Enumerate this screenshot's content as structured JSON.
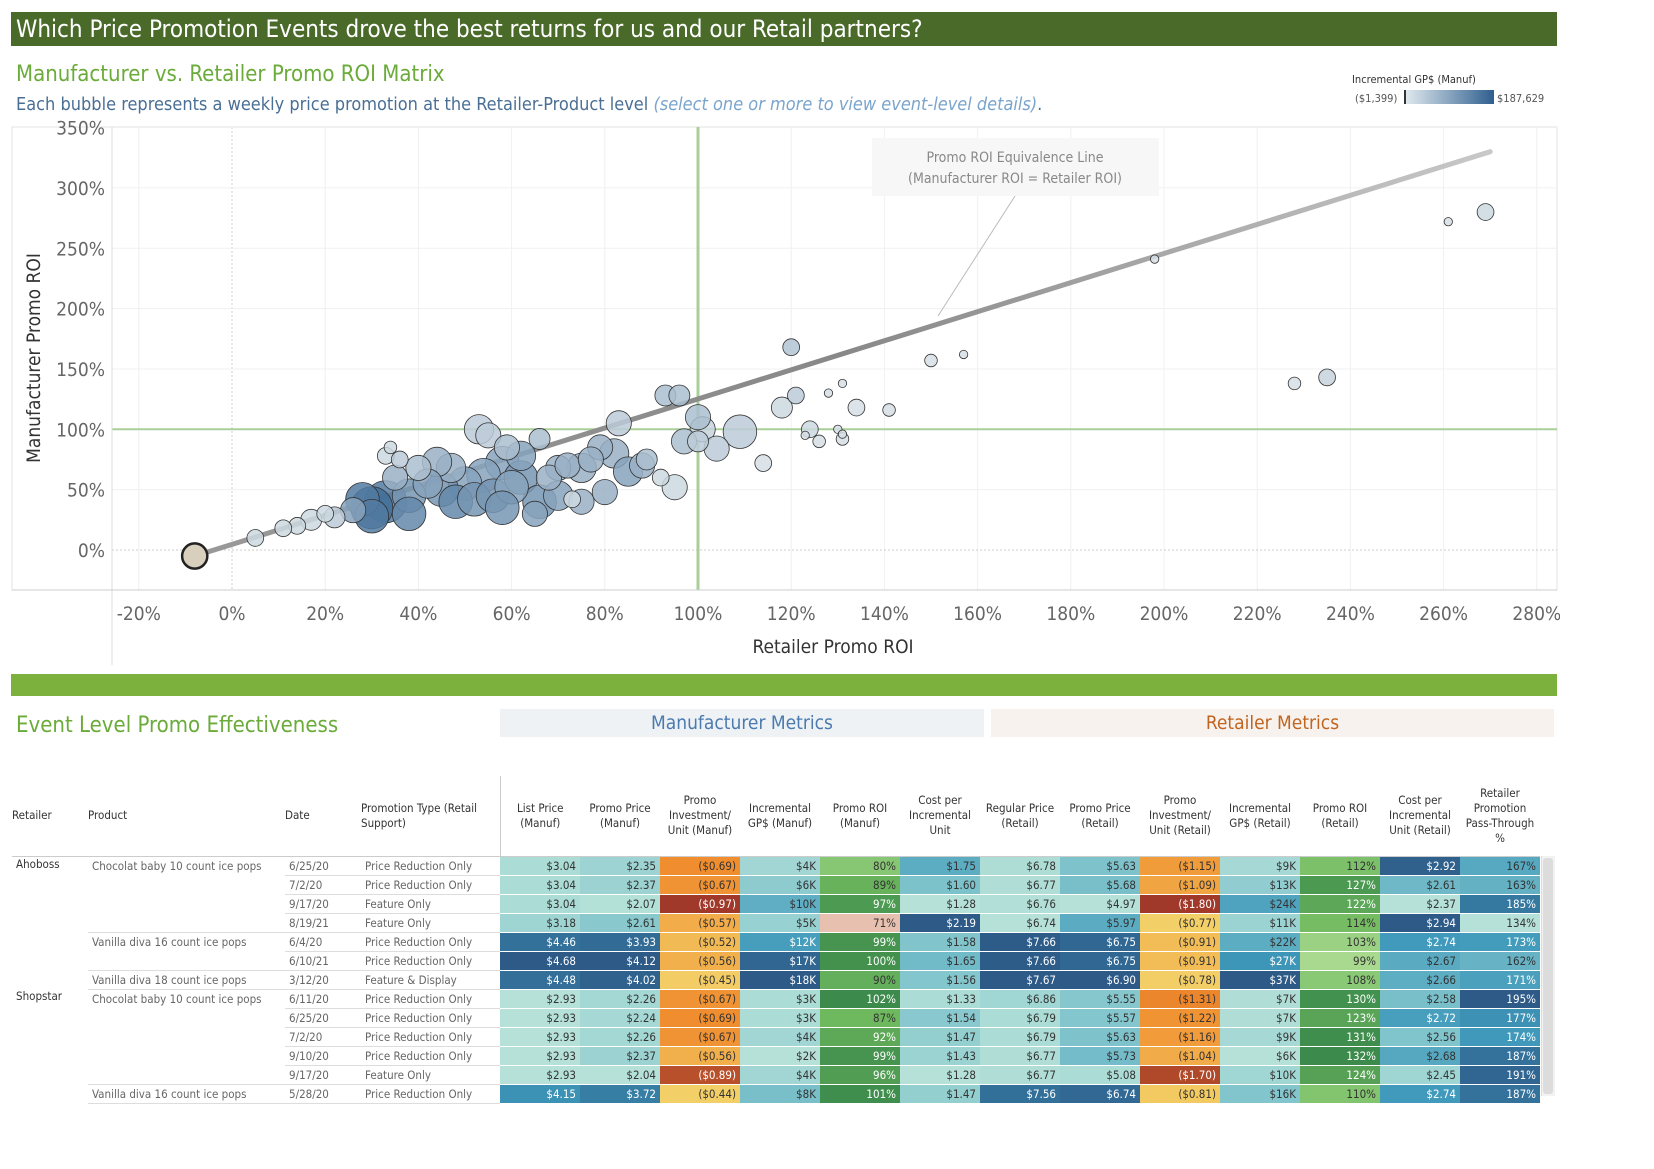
{
  "header": {
    "title": "Which Price Promotion Events drove the best returns for us and our Retail partners?"
  },
  "matrix": {
    "title": "Manufacturer vs. Retailer Promo ROI Matrix",
    "subtitle": "Each bubble represents a weekly price promotion at the Retailer-Product level",
    "subtitle_hint": "(select one or more to view event-level details)",
    "subtitle_end": "."
  },
  "legend": {
    "title": "Incremental GP$ (Manuf)",
    "min": "($1,399)",
    "max": "$187,629",
    "color_low": "#dfe8ee",
    "color_high": "#2f5f8f"
  },
  "chart_data": {
    "type": "scatter",
    "xlabel": "Retailer Promo ROI",
    "ylabel": "Manufacturer Promo ROI",
    "xlim": [
      -25,
      283
    ],
    "ylim": [
      -35,
      362
    ],
    "xticks": [
      "-20%",
      "0%",
      "20%",
      "40%",
      "60%",
      "80%",
      "100%",
      "120%",
      "140%",
      "160%",
      "180%",
      "200%",
      "220%",
      "240%",
      "260%",
      "280%"
    ],
    "xtick_values": [
      -20,
      0,
      20,
      40,
      60,
      80,
      100,
      120,
      140,
      160,
      180,
      200,
      220,
      240,
      260,
      280
    ],
    "yticks": [
      "0%",
      "50%",
      "100%",
      "150%",
      "200%",
      "250%",
      "300%",
      "350%"
    ],
    "ytick_values": [
      0,
      50,
      100,
      150,
      200,
      250,
      300,
      350
    ],
    "grid": true,
    "reference_lines": {
      "x": 100,
      "y": 100,
      "color": "#a9cf98"
    },
    "equivalence_line": {
      "label": "Promo ROI Equivalence Line",
      "label2": "(Manufacturer ROI = Retailer ROI)",
      "from": [
        -8,
        -5
      ],
      "to": [
        270,
        330
      ]
    },
    "point_fields": [
      "retailer_roi",
      "manuf_roi",
      "size",
      "gp_shade"
    ],
    "points": [
      [
        269,
        280,
        2,
        0.1
      ],
      [
        261,
        272,
        1,
        0.05
      ],
      [
        235,
        143,
        2,
        0.15
      ],
      [
        228,
        138,
        1.5,
        0.05
      ],
      [
        198,
        241,
        1,
        0.05
      ],
      [
        157,
        162,
        1,
        0.05
      ],
      [
        150,
        157,
        1.5,
        0.05
      ],
      [
        141,
        116,
        1.5,
        0.05
      ],
      [
        134,
        118,
        2,
        0.05
      ],
      [
        131,
        138,
        1,
        0.05
      ],
      [
        128,
        130,
        1,
        0.05
      ],
      [
        120,
        168,
        2,
        0.25
      ],
      [
        121,
        128,
        2,
        0.2
      ],
      [
        118,
        118,
        2.5,
        0.1
      ],
      [
        124,
        100,
        2,
        0.1
      ],
      [
        123,
        95,
        1,
        0.05
      ],
      [
        130,
        100,
        1,
        0.05
      ],
      [
        126,
        90,
        1.5,
        0.05
      ],
      [
        131,
        96,
        1,
        0.05
      ],
      [
        131,
        92,
        1.5,
        0.05
      ],
      [
        114,
        72,
        2,
        0.05
      ],
      [
        109,
        98,
        4,
        0.2
      ],
      [
        101,
        100,
        3,
        0.15
      ],
      [
        93,
        128,
        2.5,
        0.3
      ],
      [
        96,
        128,
        2.5,
        0.3
      ],
      [
        100,
        110,
        3,
        0.3
      ],
      [
        97,
        90,
        3,
        0.3
      ],
      [
        95,
        52,
        3,
        0.1
      ],
      [
        92,
        60,
        2,
        0.1
      ],
      [
        89,
        75,
        2.5,
        0.3
      ],
      [
        83,
        105,
        3,
        0.2
      ],
      [
        82,
        80,
        3.5,
        0.4
      ],
      [
        79,
        85,
        3,
        0.4
      ],
      [
        75,
        68,
        3.5,
        0.4
      ],
      [
        70,
        68,
        3,
        0.4
      ],
      [
        66,
        92,
        2.5,
        0.3
      ],
      [
        62,
        78,
        3.5,
        0.5
      ],
      [
        58,
        72,
        4,
        0.5
      ],
      [
        54,
        62,
        4,
        0.5
      ],
      [
        50,
        55,
        4,
        0.5
      ],
      [
        47,
        68,
        3.5,
        0.4
      ],
      [
        44,
        73,
        3.5,
        0.4
      ],
      [
        40,
        68,
        3,
        0.3
      ],
      [
        38,
        45,
        4,
        0.6
      ],
      [
        35,
        60,
        3,
        0.4
      ],
      [
        33,
        40,
        5,
        0.8
      ],
      [
        30,
        35,
        5,
        0.9
      ],
      [
        28,
        42,
        4,
        0.8
      ],
      [
        26,
        33,
        3,
        0.5
      ],
      [
        22,
        27,
        2.5,
        0.2
      ],
      [
        20,
        30,
        2,
        0.1
      ],
      [
        17,
        25,
        2.5,
        0.1
      ],
      [
        14,
        20,
        2,
        0.1
      ],
      [
        11,
        18,
        2,
        0.1
      ],
      [
        5,
        10,
        2,
        0.1
      ],
      [
        33,
        78,
        2,
        0.1
      ],
      [
        34,
        85,
        1.5,
        0.1
      ],
      [
        36,
        75,
        2,
        0.2
      ],
      [
        53,
        100,
        3.5,
        0.2
      ],
      [
        55,
        95,
        3,
        0.2
      ],
      [
        59,
        85,
        3,
        0.3
      ],
      [
        62,
        60,
        4,
        0.6
      ],
      [
        66,
        40,
        4,
        0.6
      ],
      [
        70,
        45,
        3.5,
        0.5
      ],
      [
        75,
        40,
        3,
        0.4
      ],
      [
        80,
        48,
        3,
        0.4
      ],
      [
        85,
        65,
        3.5,
        0.5
      ],
      [
        88,
        70,
        3,
        0.4
      ],
      [
        45,
        50,
        4,
        0.6
      ],
      [
        48,
        40,
        4,
        0.7
      ],
      [
        52,
        42,
        4,
        0.6
      ],
      [
        56,
        45,
        4,
        0.6
      ],
      [
        60,
        52,
        4,
        0.5
      ],
      [
        42,
        55,
        3.5,
        0.5
      ],
      [
        38,
        30,
        4,
        0.7
      ],
      [
        30,
        28,
        4,
        0.8
      ],
      [
        68,
        60,
        3,
        0.4
      ],
      [
        72,
        70,
        3,
        0.4
      ],
      [
        77,
        75,
        3,
        0.4
      ],
      [
        104,
        84,
        3,
        0.2
      ],
      [
        100,
        90,
        2.5,
        0.2
      ],
      [
        73,
        42,
        2,
        0.1
      ],
      [
        65,
        30,
        3,
        0.5
      ],
      [
        58,
        35,
        4,
        0.6
      ],
      [
        -8,
        -5,
        3,
        -1
      ]
    ]
  },
  "table": {
    "title": "Event Level Promo Effectiveness",
    "group_manuf": "Manufacturer Metrics",
    "group_retail": "Retailer Metrics",
    "headers": [
      "Retailer",
      "Product",
      "Date",
      "Promotion Type (Retail Support)",
      "List Price (Manuf)",
      "Promo Price (Manuf)",
      "Promo Investment/ Unit (Manuf)",
      "Incremental GP$ (Manuf)",
      "Promo ROI (Manuf)",
      "Cost per Incremental Unit",
      "Regular Price (Retail)",
      "Promo Price (Retail)",
      "Promo Investment/ Unit (Retail)",
      "Incremental GP$ (Retail)",
      "Promo ROI (Retail)",
      "Cost per Incremental Unit (Retail)",
      "Retailer Promotion Pass-Through %"
    ],
    "column_scales": [
      "blue",
      "blue",
      "orange",
      "blue",
      "green",
      "blue",
      "blue",
      "blue",
      "orange",
      "blue",
      "green",
      "blue",
      "blue"
    ],
    "rows": [
      [
        "Ahoboss",
        "Chocolat baby 10 count ice pops",
        "6/25/20",
        "Price Reduction Only",
        "$3.04",
        "$2.35",
        "($0.69)",
        "$4K",
        "80%",
        "$1.75",
        "$6.78",
        "$5.63",
        "($1.15)",
        "$9K",
        "112%",
        "$2.92",
        "167%"
      ],
      [
        "",
        "",
        "7/2/20",
        "Price Reduction Only",
        "$3.04",
        "$2.37",
        "($0.67)",
        "$6K",
        "89%",
        "$1.60",
        "$6.77",
        "$5.68",
        "($1.09)",
        "$13K",
        "127%",
        "$2.61",
        "163%"
      ],
      [
        "",
        "",
        "9/17/20",
        "Feature Only",
        "$3.04",
        "$2.07",
        "($0.97)",
        "$10K",
        "97%",
        "$1.28",
        "$6.76",
        "$4.97",
        "($1.80)",
        "$24K",
        "122%",
        "$2.37",
        "185%"
      ],
      [
        "",
        "",
        "8/19/21",
        "Feature Only",
        "$3.18",
        "$2.61",
        "($0.57)",
        "$5K",
        "71%",
        "$2.19",
        "$6.74",
        "$5.97",
        "($0.77)",
        "$11K",
        "114%",
        "$2.94",
        "134%"
      ],
      [
        "",
        "Vanilla diva 16 count ice pops",
        "6/4/20",
        "Price Reduction Only",
        "$4.46",
        "$3.93",
        "($0.52)",
        "$12K",
        "99%",
        "$1.58",
        "$7.66",
        "$6.75",
        "($0.91)",
        "$22K",
        "103%",
        "$2.74",
        "173%"
      ],
      [
        "",
        "",
        "6/10/21",
        "Price Reduction Only",
        "$4.68",
        "$4.12",
        "($0.56)",
        "$17K",
        "100%",
        "$1.65",
        "$7.66",
        "$6.75",
        "($0.91)",
        "$27K",
        "99%",
        "$2.67",
        "162%"
      ],
      [
        "",
        "Vanilla diva 18 count ice pops",
        "3/12/20",
        "Feature & Display",
        "$4.48",
        "$4.02",
        "($0.45)",
        "$18K",
        "90%",
        "$1.56",
        "$7.67",
        "$6.90",
        "($0.78)",
        "$37K",
        "108%",
        "$2.66",
        "171%"
      ],
      [
        "Shopstar",
        "Chocolat baby 10 count ice pops",
        "6/11/20",
        "Price Reduction Only",
        "$2.93",
        "$2.26",
        "($0.67)",
        "$3K",
        "102%",
        "$1.33",
        "$6.86",
        "$5.55",
        "($1.31)",
        "$7K",
        "130%",
        "$2.58",
        "195%"
      ],
      [
        "",
        "",
        "6/25/20",
        "Price Reduction Only",
        "$2.93",
        "$2.24",
        "($0.69)",
        "$3K",
        "87%",
        "$1.54",
        "$6.79",
        "$5.57",
        "($1.22)",
        "$7K",
        "123%",
        "$2.72",
        "177%"
      ],
      [
        "",
        "",
        "7/2/20",
        "Price Reduction Only",
        "$2.93",
        "$2.26",
        "($0.67)",
        "$4K",
        "92%",
        "$1.47",
        "$6.79",
        "$5.63",
        "($1.16)",
        "$9K",
        "131%",
        "$2.56",
        "174%"
      ],
      [
        "",
        "",
        "9/10/20",
        "Price Reduction Only",
        "$2.93",
        "$2.37",
        "($0.56)",
        "$2K",
        "99%",
        "$1.43",
        "$6.77",
        "$5.73",
        "($1.04)",
        "$6K",
        "132%",
        "$2.68",
        "187%"
      ],
      [
        "",
        "",
        "9/17/20",
        "Feature Only",
        "$2.93",
        "$2.04",
        "($0.89)",
        "$4K",
        "96%",
        "$1.28",
        "$6.77",
        "$5.08",
        "($1.70)",
        "$10K",
        "124%",
        "$2.45",
        "191%"
      ],
      [
        "",
        "Vanilla diva 16 count ice pops",
        "5/28/20",
        "Price Reduction Only",
        "$4.15",
        "$3.72",
        "($0.44)",
        "$8K",
        "101%",
        "$1.47",
        "$7.56",
        "$6.74",
        "($0.81)",
        "$16K",
        "110%",
        "$2.74",
        "187%"
      ]
    ]
  }
}
